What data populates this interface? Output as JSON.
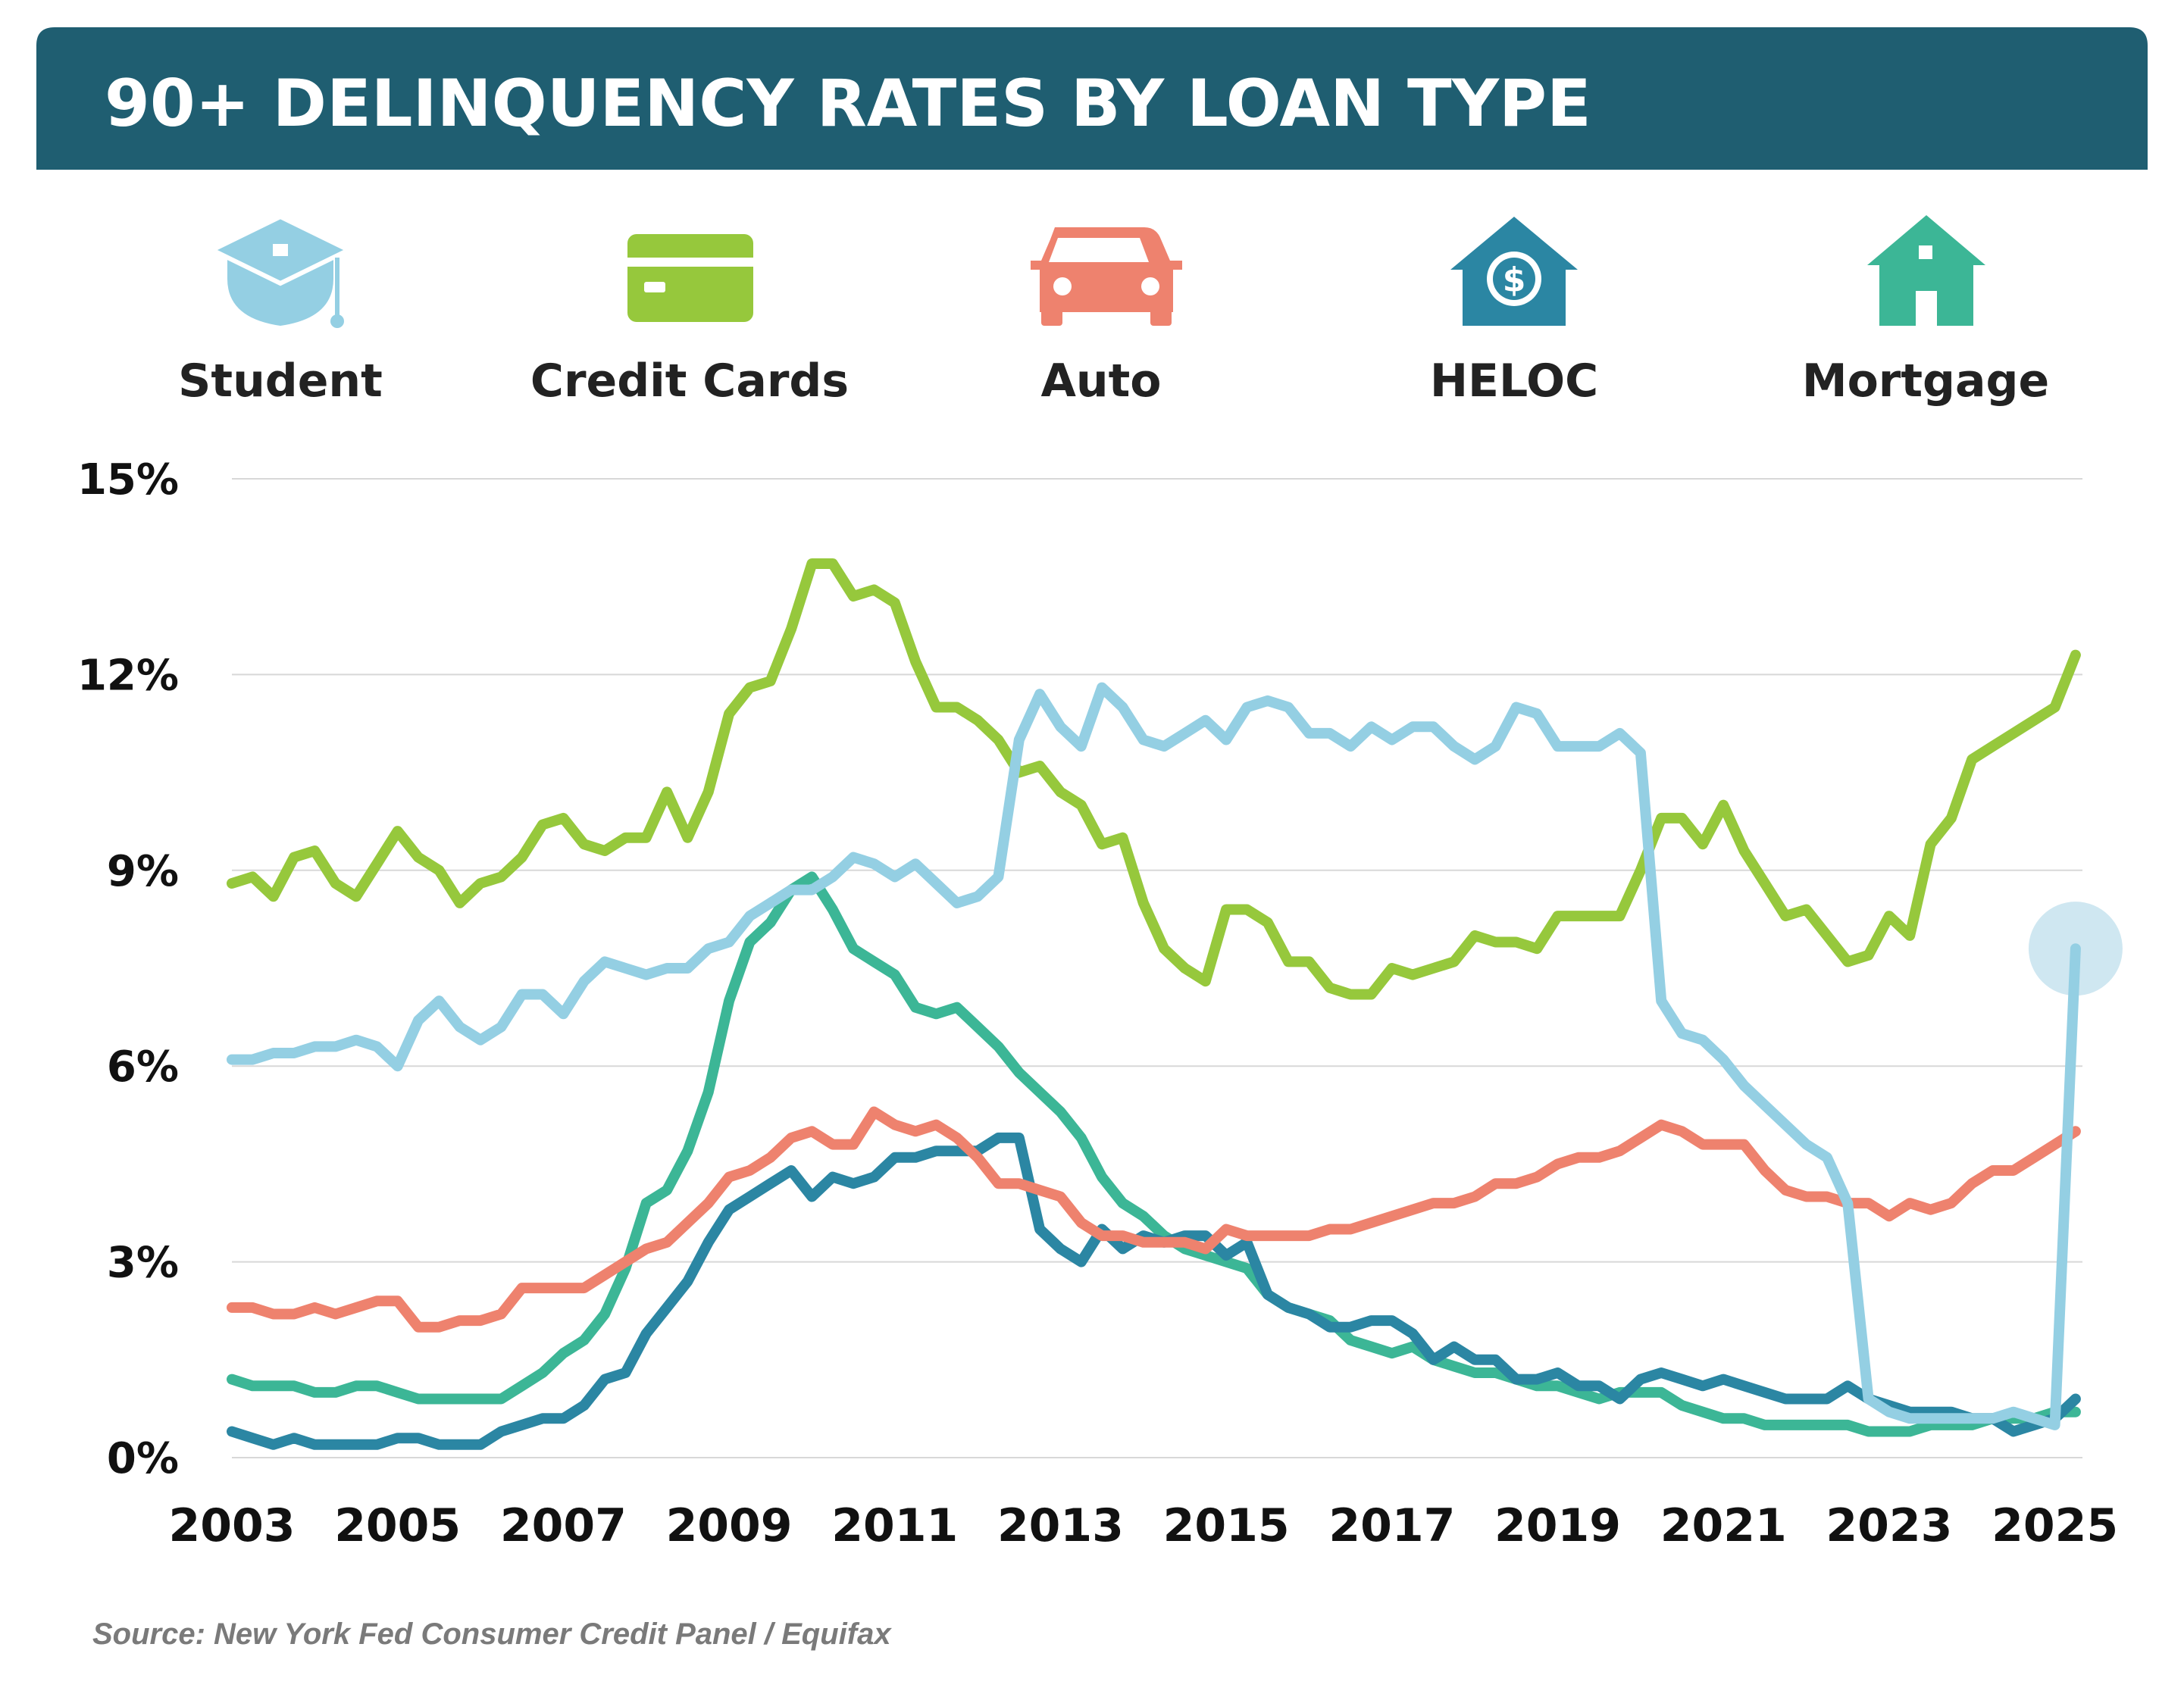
{
  "title": "90+ DELINQUENCY RATES BY LOAN TYPE",
  "source": "Source: New York Fed Consumer Credit Panel / Equifax",
  "legend": [
    {
      "label": "Student",
      "icon": "graduation-cap-icon",
      "color": "#94CFE3"
    },
    {
      "label": "Credit Cards",
      "icon": "credit-card-icon",
      "color": "#96C83C"
    },
    {
      "label": "Auto",
      "icon": "car-icon",
      "color": "#EE826E"
    },
    {
      "label": "HELOC",
      "icon": "house-dollar-icon",
      "color": "#2B86A3"
    },
    {
      "label": "Mortgage",
      "icon": "house-icon",
      "color": "#3CB696"
    }
  ],
  "colors": {
    "header_bg": "#1F5E71",
    "gridline": "#D8D8D8",
    "highlight": "#CFE7F1"
  },
  "chart_data": {
    "type": "line",
    "title": "90+ DELINQUENCY RATES BY LOAN TYPE",
    "xlabel": "",
    "ylabel": "",
    "ylim": [
      0,
      15
    ],
    "xlim": [
      2003,
      2025.25
    ],
    "yticks": [
      "0%",
      "3%",
      "6%",
      "9%",
      "12%",
      "15%"
    ],
    "ytick_values": [
      0,
      3,
      6,
      9,
      12,
      15
    ],
    "xticks": [
      "2003",
      "2005",
      "2007",
      "2009",
      "2011",
      "2013",
      "2015",
      "2017",
      "2019",
      "2021",
      "2023",
      "2025"
    ],
    "xtick_values": [
      2003,
      2005,
      2007,
      2009,
      2011,
      2013,
      2015,
      2017,
      2019,
      2021,
      2023,
      2025
    ],
    "grid": true,
    "highlight": {
      "series": "Student",
      "x": 2025.25,
      "y": 7.8
    },
    "series": [
      {
        "name": "Student",
        "color": "#94CFE3",
        "x": [
          2003,
          2003.25,
          2003.5,
          2003.75,
          2004,
          2004.25,
          2004.5,
          2004.75,
          2005,
          2005.25,
          2005.5,
          2005.75,
          2006,
          2006.25,
          2006.5,
          2006.75,
          2007,
          2007.25,
          2007.5,
          2007.75,
          2008,
          2008.25,
          2008.5,
          2008.75,
          2009,
          2009.25,
          2009.5,
          2009.75,
          2010,
          2010.25,
          2010.5,
          2010.75,
          2011,
          2011.25,
          2011.5,
          2011.75,
          2012,
          2012.25,
          2012.5,
          2012.75,
          2013,
          2013.25,
          2013.5,
          2013.75,
          2014,
          2014.25,
          2014.5,
          2014.75,
          2015,
          2015.25,
          2015.5,
          2015.75,
          2016,
          2016.25,
          2016.5,
          2016.75,
          2017,
          2017.25,
          2017.5,
          2017.75,
          2018,
          2018.25,
          2018.5,
          2018.75,
          2019,
          2019.25,
          2019.5,
          2019.75,
          2020,
          2020.25,
          2020.5,
          2020.75,
          2021,
          2021.25,
          2021.5,
          2021.75,
          2022,
          2022.25,
          2022.5,
          2022.75,
          2023,
          2023.25,
          2023.5,
          2023.75,
          2024,
          2024.25,
          2024.5,
          2024.75,
          2025,
          2025.25
        ],
        "values": [
          6.1,
          6.1,
          6.2,
          6.2,
          6.3,
          6.3,
          6.4,
          6.3,
          6.0,
          6.7,
          7.0,
          6.6,
          6.4,
          6.6,
          7.1,
          7.1,
          6.8,
          7.3,
          7.6,
          7.5,
          7.4,
          7.5,
          7.5,
          7.8,
          7.9,
          8.3,
          8.5,
          8.7,
          8.7,
          8.9,
          9.2,
          9.1,
          8.9,
          9.1,
          8.8,
          8.5,
          8.6,
          8.9,
          11.0,
          11.7,
          11.2,
          10.9,
          11.8,
          11.5,
          11.0,
          10.9,
          11.1,
          11.3,
          11.0,
          11.5,
          11.6,
          11.5,
          11.1,
          11.1,
          10.9,
          11.2,
          11.0,
          11.2,
          11.2,
          10.9,
          10.7,
          10.9,
          11.5,
          11.4,
          10.9,
          10.9,
          10.9,
          11.1,
          10.8,
          7.0,
          6.5,
          6.4,
          6.1,
          5.7,
          5.4,
          5.1,
          4.8,
          4.6,
          3.9,
          0.9,
          0.7,
          0.6,
          0.6,
          0.6,
          0.6,
          0.6,
          0.7,
          0.6,
          0.5,
          7.8
        ]
      },
      {
        "name": "Credit Cards",
        "color": "#96C83C",
        "x": [
          2003,
          2003.25,
          2003.5,
          2003.75,
          2004,
          2004.25,
          2004.5,
          2004.75,
          2005,
          2005.25,
          2005.5,
          2005.75,
          2006,
          2006.25,
          2006.5,
          2006.75,
          2007,
          2007.25,
          2007.5,
          2007.75,
          2008,
          2008.25,
          2008.5,
          2008.75,
          2009,
          2009.25,
          2009.5,
          2009.75,
          2010,
          2010.25,
          2010.5,
          2010.75,
          2011,
          2011.25,
          2011.5,
          2011.75,
          2012,
          2012.25,
          2012.5,
          2012.75,
          2013,
          2013.25,
          2013.5,
          2013.75,
          2014,
          2014.25,
          2014.5,
          2014.75,
          2015,
          2015.25,
          2015.5,
          2015.75,
          2016,
          2016.25,
          2016.5,
          2016.75,
          2017,
          2017.25,
          2017.5,
          2017.75,
          2018,
          2018.25,
          2018.5,
          2018.75,
          2019,
          2019.25,
          2019.5,
          2019.75,
          2020,
          2020.25,
          2020.5,
          2020.75,
          2021,
          2021.25,
          2021.5,
          2021.75,
          2022,
          2022.25,
          2022.5,
          2022.75,
          2023,
          2023.25,
          2023.5,
          2023.75,
          2024,
          2024.25,
          2024.5,
          2024.75,
          2025,
          2025.25
        ],
        "values": [
          8.8,
          8.9,
          8.6,
          9.2,
          9.3,
          8.8,
          8.6,
          9.1,
          9.6,
          9.2,
          9.0,
          8.5,
          8.8,
          8.9,
          9.2,
          9.7,
          9.8,
          9.4,
          9.3,
          9.5,
          9.5,
          10.2,
          9.5,
          10.2,
          11.4,
          11.8,
          11.9,
          12.7,
          13.7,
          13.7,
          13.2,
          13.3,
          13.1,
          12.2,
          11.5,
          11.5,
          11.3,
          11.0,
          10.5,
          10.6,
          10.2,
          10.0,
          9.4,
          9.5,
          8.5,
          7.8,
          7.5,
          7.3,
          8.4,
          8.4,
          8.2,
          7.6,
          7.6,
          7.2,
          7.1,
          7.1,
          7.5,
          7.4,
          7.5,
          7.6,
          8.0,
          7.9,
          7.9,
          7.8,
          8.3,
          8.3,
          8.3,
          8.3,
          9.0,
          9.8,
          9.8,
          9.4,
          10.0,
          9.3,
          8.8,
          8.3,
          8.4,
          8.0,
          7.6,
          7.7,
          8.3,
          8.0,
          9.4,
          9.8,
          10.7,
          10.9,
          11.1,
          11.3,
          11.5,
          12.3
        ]
      },
      {
        "name": "Auto",
        "color": "#EE826E",
        "x": [
          2003,
          2003.25,
          2003.5,
          2003.75,
          2004,
          2004.25,
          2004.5,
          2004.75,
          2005,
          2005.25,
          2005.5,
          2005.75,
          2006,
          2006.25,
          2006.5,
          2006.75,
          2007,
          2007.25,
          2007.5,
          2007.75,
          2008,
          2008.25,
          2008.5,
          2008.75,
          2009,
          2009.25,
          2009.5,
          2009.75,
          2010,
          2010.25,
          2010.5,
          2010.75,
          2011,
          2011.25,
          2011.5,
          2011.75,
          2012,
          2012.25,
          2012.5,
          2012.75,
          2013,
          2013.25,
          2013.5,
          2013.75,
          2014,
          2014.25,
          2014.5,
          2014.75,
          2015,
          2015.25,
          2015.5,
          2015.75,
          2016,
          2016.25,
          2016.5,
          2016.75,
          2017,
          2017.25,
          2017.5,
          2017.75,
          2018,
          2018.25,
          2018.5,
          2018.75,
          2019,
          2019.25,
          2019.5,
          2019.75,
          2020,
          2020.25,
          2020.5,
          2020.75,
          2021,
          2021.25,
          2021.5,
          2021.75,
          2022,
          2022.25,
          2022.5,
          2022.75,
          2023,
          2023.25,
          2023.5,
          2023.75,
          2024,
          2024.25,
          2024.5,
          2024.75,
          2025,
          2025.25
        ],
        "values": [
          2.3,
          2.3,
          2.2,
          2.2,
          2.3,
          2.2,
          2.3,
          2.4,
          2.4,
          2.0,
          2.0,
          2.1,
          2.1,
          2.2,
          2.6,
          2.6,
          2.6,
          2.6,
          2.8,
          3.0,
          3.2,
          3.3,
          3.6,
          3.9,
          4.3,
          4.4,
          4.6,
          4.9,
          5.0,
          4.8,
          4.8,
          5.3,
          5.1,
          5.0,
          5.1,
          4.9,
          4.6,
          4.2,
          4.2,
          4.1,
          4.0,
          3.6,
          3.4,
          3.4,
          3.3,
          3.3,
          3.3,
          3.2,
          3.5,
          3.4,
          3.4,
          3.4,
          3.4,
          3.5,
          3.5,
          3.6,
          3.7,
          3.8,
          3.9,
          3.9,
          4.0,
          4.2,
          4.2,
          4.3,
          4.5,
          4.6,
          4.6,
          4.7,
          4.9,
          5.1,
          5.0,
          4.8,
          4.8,
          4.8,
          4.4,
          4.1,
          4.0,
          4.0,
          3.9,
          3.9,
          3.7,
          3.9,
          3.8,
          3.9,
          4.2,
          4.4,
          4.4,
          4.6,
          4.8,
          5.0
        ]
      },
      {
        "name": "HELOC",
        "color": "#2B86A3",
        "x": [
          2003,
          2003.25,
          2003.5,
          2003.75,
          2004,
          2004.25,
          2004.5,
          2004.75,
          2005,
          2005.25,
          2005.5,
          2005.75,
          2006,
          2006.25,
          2006.5,
          2006.75,
          2007,
          2007.25,
          2007.5,
          2007.75,
          2008,
          2008.25,
          2008.5,
          2008.75,
          2009,
          2009.25,
          2009.5,
          2009.75,
          2010,
          2010.25,
          2010.5,
          2010.75,
          2011,
          2011.25,
          2011.5,
          2011.75,
          2012,
          2012.25,
          2012.5,
          2012.75,
          2013,
          2013.25,
          2013.5,
          2013.75,
          2014,
          2014.25,
          2014.5,
          2014.75,
          2015,
          2015.25,
          2015.5,
          2015.75,
          2016,
          2016.25,
          2016.5,
          2016.75,
          2017,
          2017.25,
          2017.5,
          2017.75,
          2018,
          2018.25,
          2018.5,
          2018.75,
          2019,
          2019.25,
          2019.5,
          2019.75,
          2020,
          2020.25,
          2020.5,
          2020.75,
          2021,
          2021.25,
          2021.5,
          2021.75,
          2022,
          2022.25,
          2022.5,
          2022.75,
          2023,
          2023.25,
          2023.5,
          2023.75,
          2024,
          2024.25,
          2024.5,
          2024.75,
          2025,
          2025.25
        ],
        "values": [
          0.4,
          0.3,
          0.2,
          0.3,
          0.2,
          0.2,
          0.2,
          0.2,
          0.3,
          0.3,
          0.2,
          0.2,
          0.2,
          0.4,
          0.5,
          0.6,
          0.6,
          0.8,
          1.2,
          1.3,
          1.9,
          2.3,
          2.7,
          3.3,
          3.8,
          4.0,
          4.2,
          4.4,
          4.0,
          4.3,
          4.2,
          4.3,
          4.6,
          4.6,
          4.7,
          4.7,
          4.7,
          4.9,
          4.9,
          3.5,
          3.2,
          3.0,
          3.5,
          3.2,
          3.4,
          3.3,
          3.4,
          3.4,
          3.1,
          3.3,
          2.5,
          2.3,
          2.2,
          2.0,
          2.0,
          2.1,
          2.1,
          1.9,
          1.5,
          1.7,
          1.5,
          1.5,
          1.2,
          1.2,
          1.3,
          1.1,
          1.1,
          0.9,
          1.2,
          1.3,
          1.2,
          1.1,
          1.2,
          1.1,
          1.0,
          0.9,
          0.9,
          0.9,
          1.1,
          0.9,
          0.8,
          0.7,
          0.7,
          0.7,
          0.6,
          0.6,
          0.4,
          0.5,
          0.6,
          0.9
        ]
      },
      {
        "name": "Mortgage",
        "color": "#3CB696",
        "x": [
          2003,
          2003.25,
          2003.5,
          2003.75,
          2004,
          2004.25,
          2004.5,
          2004.75,
          2005,
          2005.25,
          2005.5,
          2005.75,
          2006,
          2006.25,
          2006.5,
          2006.75,
          2007,
          2007.25,
          2007.5,
          2007.75,
          2008,
          2008.25,
          2008.5,
          2008.75,
          2009,
          2009.25,
          2009.5,
          2009.75,
          2010,
          2010.25,
          2010.5,
          2010.75,
          2011,
          2011.25,
          2011.5,
          2011.75,
          2012,
          2012.25,
          2012.5,
          2012.75,
          2013,
          2013.25,
          2013.5,
          2013.75,
          2014,
          2014.25,
          2014.5,
          2014.75,
          2015,
          2015.25,
          2015.5,
          2015.75,
          2016,
          2016.25,
          2016.5,
          2016.75,
          2017,
          2017.25,
          2017.5,
          2017.75,
          2018,
          2018.25,
          2018.5,
          2018.75,
          2019,
          2019.25,
          2019.5,
          2019.75,
          2020,
          2020.25,
          2020.5,
          2020.75,
          2021,
          2021.25,
          2021.5,
          2021.75,
          2022,
          2022.25,
          2022.5,
          2022.75,
          2023,
          2023.25,
          2023.5,
          2023.75,
          2024,
          2024.25,
          2024.5,
          2024.75,
          2025,
          2025.25
        ],
        "values": [
          1.2,
          1.1,
          1.1,
          1.1,
          1.0,
          1.0,
          1.1,
          1.1,
          1.0,
          0.9,
          0.9,
          0.9,
          0.9,
          0.9,
          1.1,
          1.3,
          1.6,
          1.8,
          2.2,
          2.9,
          3.9,
          4.1,
          4.7,
          5.6,
          7.0,
          7.9,
          8.2,
          8.7,
          8.9,
          8.4,
          7.8,
          7.6,
          7.4,
          6.9,
          6.8,
          6.9,
          6.6,
          6.3,
          5.9,
          5.6,
          5.3,
          4.9,
          4.3,
          3.9,
          3.7,
          3.4,
          3.2,
          3.1,
          3.0,
          2.9,
          2.5,
          2.3,
          2.2,
          2.1,
          1.8,
          1.7,
          1.6,
          1.7,
          1.5,
          1.4,
          1.3,
          1.3,
          1.2,
          1.1,
          1.1,
          1.0,
          0.9,
          1.0,
          1.0,
          1.0,
          0.8,
          0.7,
          0.6,
          0.6,
          0.5,
          0.5,
          0.5,
          0.5,
          0.5,
          0.4,
          0.4,
          0.4,
          0.5,
          0.5,
          0.5,
          0.6,
          0.6,
          0.6,
          0.7,
          0.7
        ]
      }
    ]
  }
}
